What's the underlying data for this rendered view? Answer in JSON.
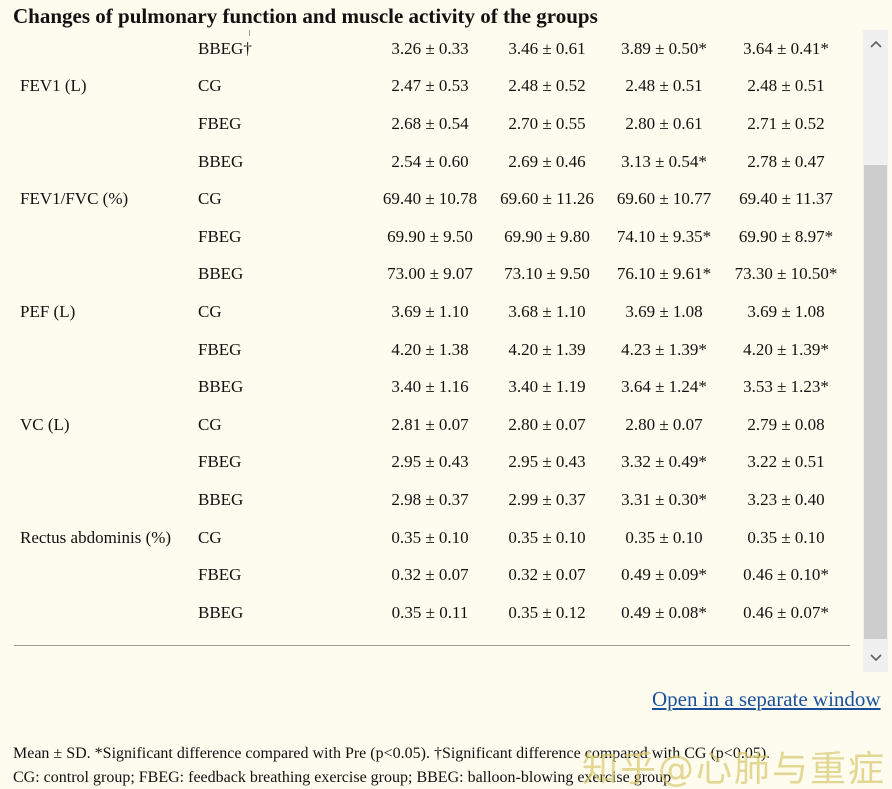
{
  "title": "Changes of pulmonary function and muscle activity of the groups",
  "rows": [
    {
      "param": "",
      "group": "BBEG†",
      "values": [
        "3.26 ± 0.33",
        "3.46 ± 0.61",
        "3.89 ± 0.50*",
        "3.64 ± 0.41*"
      ]
    },
    {
      "param": "FEV1 (L)",
      "group": "CG",
      "values": [
        "2.47 ± 0.53",
        "2.48 ± 0.52",
        "2.48 ± 0.51",
        "2.48 ± 0.51"
      ]
    },
    {
      "param": "",
      "group": "FBEG",
      "values": [
        "2.68 ± 0.54",
        "2.70 ± 0.55",
        "2.80 ± 0.61",
        "2.71 ± 0.52"
      ]
    },
    {
      "param": "",
      "group": "BBEG",
      "values": [
        "2.54 ± 0.60",
        "2.69 ± 0.46",
        "3.13 ± 0.54*",
        "2.78 ± 0.47"
      ]
    },
    {
      "param": "FEV1/FVC (%)",
      "group": "CG",
      "values": [
        "69.40 ± 10.78",
        "69.60 ± 11.26",
        "69.60 ± 10.77",
        "69.40 ± 11.37"
      ]
    },
    {
      "param": "",
      "group": "FBEG",
      "values": [
        "69.90 ± 9.50",
        "69.90 ± 9.80",
        "74.10 ± 9.35*",
        "69.90 ± 8.97*"
      ]
    },
    {
      "param": "",
      "group": "BBEG",
      "values": [
        "73.00 ± 9.07",
        "73.10 ± 9.50",
        "76.10 ± 9.61*",
        "73.30 ± 10.50*"
      ]
    },
    {
      "param": "PEF (L)",
      "group": "CG",
      "values": [
        "3.69 ± 1.10",
        "3.68 ± 1.10",
        "3.69 ± 1.08",
        "3.69 ± 1.08"
      ]
    },
    {
      "param": "",
      "group": "FBEG",
      "values": [
        "4.20 ± 1.38",
        "4.20 ± 1.39",
        "4.23 ± 1.39*",
        "4.20 ± 1.39*"
      ]
    },
    {
      "param": "",
      "group": "BBEG",
      "values": [
        "3.40 ± 1.16",
        "3.40 ± 1.19",
        "3.64 ± 1.24*",
        "3.53 ± 1.23*"
      ]
    },
    {
      "param": "VC (L)",
      "group": "CG",
      "values": [
        "2.81 ± 0.07",
        "2.80 ± 0.07",
        "2.80 ± 0.07",
        "2.79 ± 0.08"
      ]
    },
    {
      "param": "",
      "group": "FBEG",
      "values": [
        "2.95 ± 0.43",
        "2.95 ± 0.43",
        "3.32 ± 0.49*",
        "3.22 ± 0.51"
      ]
    },
    {
      "param": "",
      "group": "BBEG",
      "values": [
        "2.98 ± 0.37",
        "2.99 ± 0.37",
        "3.31 ± 0.30*",
        "3.23 ± 0.40"
      ]
    },
    {
      "param": "Rectus abdominis (%)",
      "group": "CG",
      "values": [
        "0.35 ± 0.10",
        "0.35 ± 0.10",
        "0.35 ± 0.10",
        "0.35 ± 0.10"
      ]
    },
    {
      "param": "",
      "group": "FBEG",
      "values": [
        "0.32 ± 0.07",
        "0.32 ± 0.07",
        "0.49 ± 0.09*",
        "0.46 ± 0.10*"
      ]
    },
    {
      "param": "",
      "group": "BBEG",
      "values": [
        "0.35 ± 0.11",
        "0.35 ± 0.12",
        "0.49 ± 0.08*",
        "0.46 ± 0.07*"
      ]
    }
  ],
  "scrollbar": {
    "up_icon": "chevron-up-icon",
    "down_icon": "chevron-down-icon"
  },
  "open_link": "Open in a separate window",
  "footnotes": [
    "Mean ± SD. *Significant difference compared with Pre (p<0.05). †Significant difference compared with CG (p<0.05).",
    "CG: control group; FBEG: feedback breathing exercise group; BBEG: balloon-blowing exercise group"
  ],
  "watermark": "知乎@心肺与重症",
  "colors": {
    "background": "#fdfcef",
    "link": "#1b4f9c",
    "scroll_thumb": "#cdcdcd"
  }
}
